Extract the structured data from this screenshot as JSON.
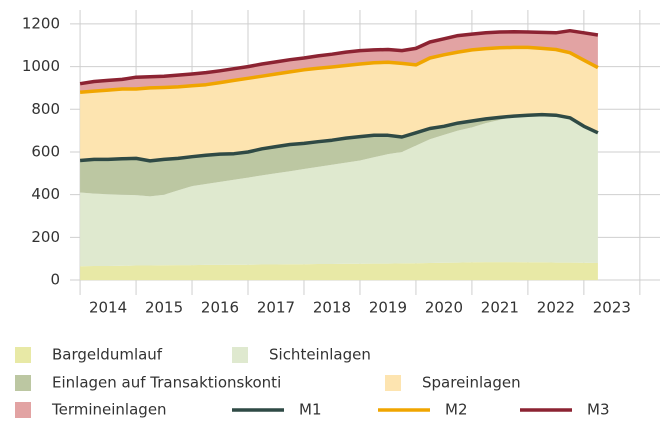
{
  "chart_data": {
    "type": "area",
    "stacked": true,
    "x": [
      2014.0,
      2014.25,
      2014.5,
      2014.75,
      2015.0,
      2015.25,
      2015.5,
      2015.75,
      2016.0,
      2016.25,
      2016.5,
      2016.75,
      2017.0,
      2017.25,
      2017.5,
      2017.75,
      2018.0,
      2018.25,
      2018.5,
      2018.75,
      2019.0,
      2019.25,
      2019.5,
      2019.75,
      2020.0,
      2020.25,
      2020.5,
      2020.75,
      2021.0,
      2021.25,
      2021.5,
      2021.75,
      2022.0,
      2022.25,
      2022.5,
      2022.75,
      2023.0,
      2023.25
    ],
    "xlim": [
      2013.82,
      2024.36
    ],
    "xticks": [
      {
        "value": 2014.5,
        "label": "2014"
      },
      {
        "value": 2015.5,
        "label": "2015"
      },
      {
        "value": 2016.5,
        "label": "2016"
      },
      {
        "value": 2017.5,
        "label": "2017"
      },
      {
        "value": 2018.5,
        "label": "2018"
      },
      {
        "value": 2019.5,
        "label": "2019"
      },
      {
        "value": 2020.5,
        "label": "2020"
      },
      {
        "value": 2021.5,
        "label": "2021"
      },
      {
        "value": 2022.5,
        "label": "2022"
      },
      {
        "value": 2023.5,
        "label": "2023"
      }
    ],
    "xgrid": [
      2014,
      2015,
      2016,
      2017,
      2018,
      2019,
      2020,
      2021,
      2022,
      2023,
      2024
    ],
    "ylim": [
      -70,
      1265
    ],
    "yticks": [
      0,
      200,
      400,
      600,
      800,
      1000,
      1200
    ],
    "grid": true,
    "series": [
      {
        "name": "Bargeldumlauf",
        "kind": "area",
        "color": "#e8e9a6",
        "values": [
          65,
          66,
          66,
          67,
          68,
          68,
          69,
          70,
          70,
          71,
          71,
          72,
          72,
          73,
          73,
          74,
          74,
          75,
          75,
          76,
          76,
          77,
          77,
          78,
          79,
          80,
          81,
          82,
          83,
          84,
          84,
          84,
          83,
          83,
          82,
          82,
          81,
          80
        ]
      },
      {
        "name": "Sichteinlagen",
        "kind": "area",
        "color": "#dfe9cf",
        "values": [
          345,
          339,
          336,
          333,
          330,
          324,
          331,
          350,
          370,
          379,
          389,
          398,
          408,
          417,
          427,
          436,
          446,
          455,
          465,
          474,
          484,
          498,
          513,
          522,
          551,
          580,
          599,
          618,
          632,
          651,
          666,
          681,
          687,
          689,
          686,
          673,
          639,
          610
        ]
      },
      {
        "name": "Einlagen auf Transaktionskonti",
        "kind": "area",
        "color": "#bcc7a2",
        "values": [
          150,
          160,
          163,
          168,
          172,
          166,
          165,
          150,
          138,
          135,
          130,
          122,
          120,
          125,
          125,
          125,
          120,
          118,
          115,
          115,
          112,
          103,
          88,
          70,
          60,
          50,
          40,
          35,
          30,
          20,
          12,
          3,
          2,
          3,
          4,
          5,
          0,
          0
        ]
      },
      {
        "name": "Spareinlagen",
        "kind": "area",
        "color": "#fde4b0",
        "values": [
          320,
          320,
          325,
          327,
          325,
          342,
          337,
          335,
          332,
          330,
          335,
          343,
          345,
          340,
          340,
          340,
          345,
          344,
          343,
          340,
          340,
          340,
          342,
          345,
          318,
          330,
          335,
          333,
          333,
          329,
          326,
          322,
          318,
          310,
          308,
          305,
          310,
          305
        ]
      },
      {
        "name": "Termineinlagen",
        "kind": "area",
        "color": "#e2a3a3",
        "values": [
          40,
          45,
          45,
          45,
          55,
          52,
          53,
          55,
          55,
          57,
          55,
          55,
          55,
          57,
          57,
          57,
          55,
          58,
          60,
          63,
          63,
          60,
          60,
          60,
          77,
          75,
          75,
          77,
          74,
          74,
          74,
          73,
          72,
          75,
          78,
          103,
          128,
          153
        ]
      },
      {
        "name": "M1",
        "kind": "line",
        "color": "#2f4a45",
        "values": [
          560,
          565,
          565,
          568,
          570,
          558,
          565,
          570,
          578,
          585,
          590,
          592,
          600,
          615,
          625,
          635,
          640,
          648,
          655,
          665,
          672,
          678,
          678,
          670,
          690,
          710,
          720,
          735,
          745,
          755,
          762,
          768,
          772,
          775,
          772,
          760,
          720,
          690
        ]
      },
      {
        "name": "M2",
        "kind": "line",
        "color": "#f0a500",
        "values": [
          880,
          885,
          890,
          895,
          895,
          900,
          902,
          905,
          910,
          915,
          925,
          935,
          945,
          955,
          965,
          975,
          985,
          992,
          998,
          1005,
          1012,
          1018,
          1020,
          1015,
          1008,
          1040,
          1055,
          1068,
          1078,
          1084,
          1088,
          1090,
          1090,
          1085,
          1080,
          1065,
          1030,
          995
        ]
      },
      {
        "name": "M3",
        "kind": "line",
        "color": "#8c2332",
        "values": [
          920,
          930,
          935,
          940,
          950,
          952,
          955,
          960,
          965,
          972,
          980,
          990,
          1000,
          1012,
          1022,
          1032,
          1040,
          1050,
          1058,
          1068,
          1075,
          1078,
          1080,
          1075,
          1085,
          1115,
          1130,
          1145,
          1152,
          1158,
          1162,
          1163,
          1162,
          1160,
          1158,
          1168,
          1158,
          1148
        ]
      }
    ]
  }
}
